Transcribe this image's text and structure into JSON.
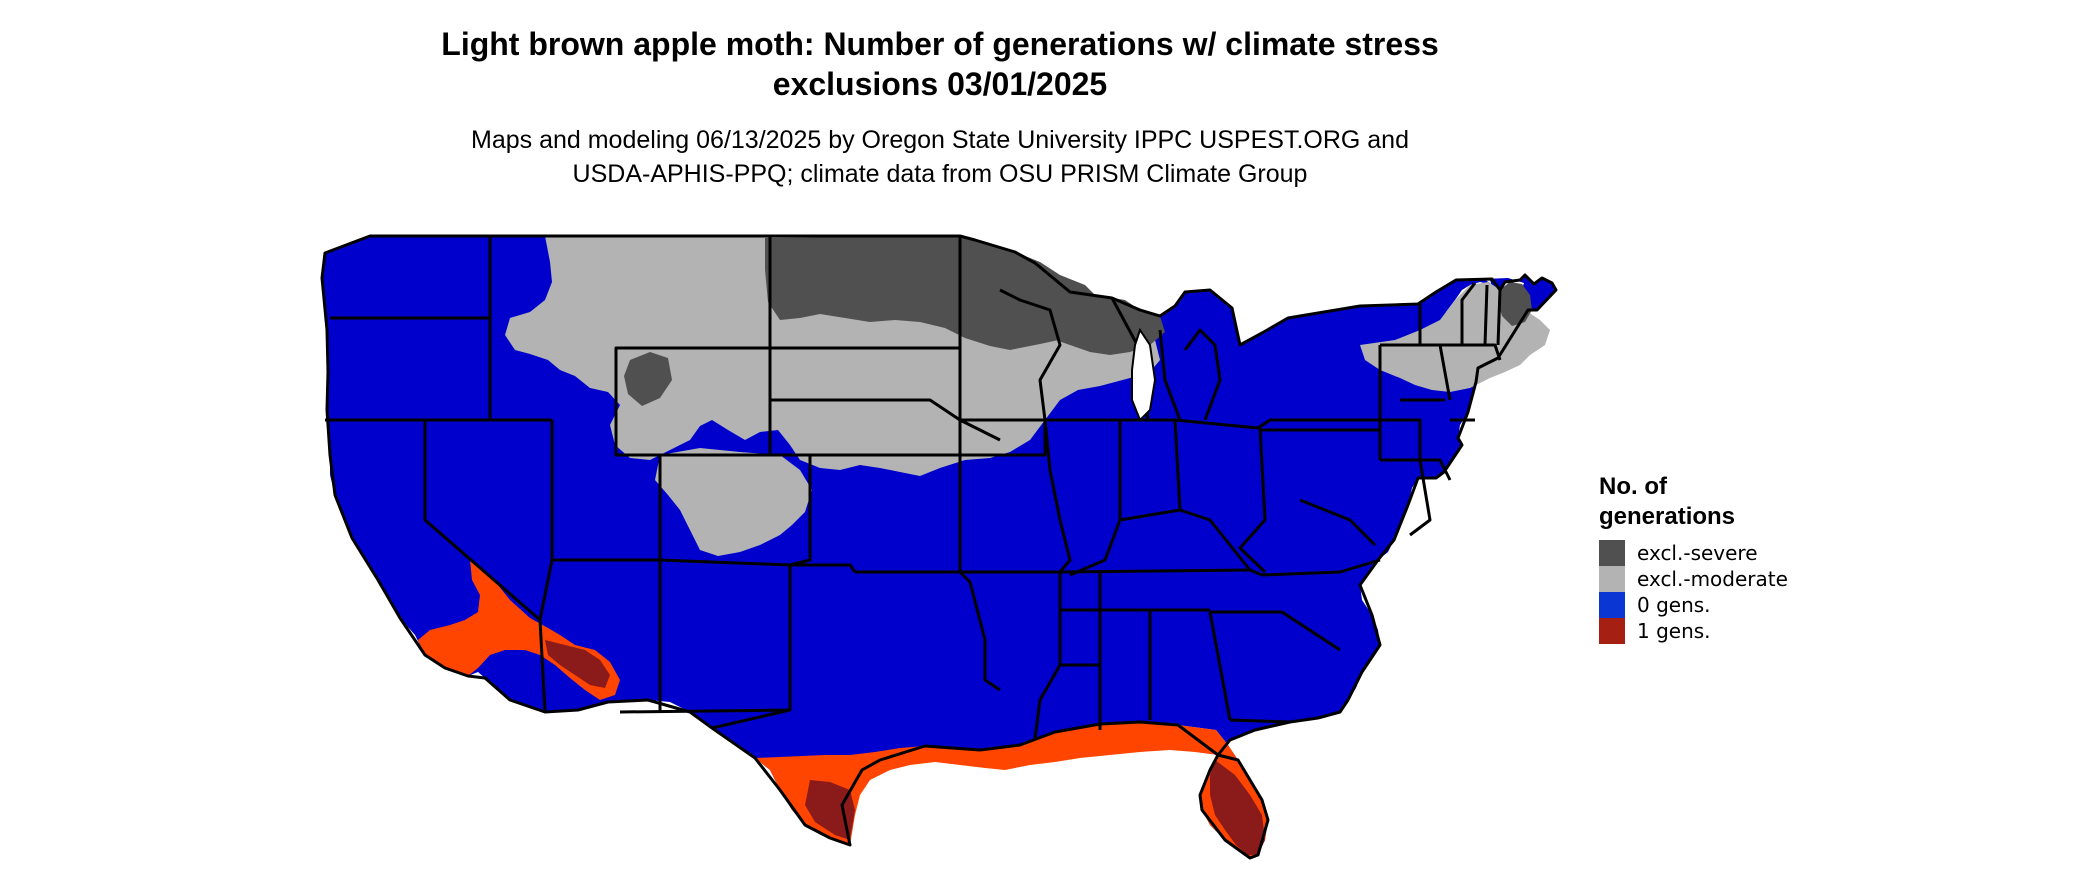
{
  "title_line1": "Light brown apple moth: Number of generations w/ climate stress",
  "title_line2": "exclusions 03/01/2025",
  "subtitle_line1": "Maps and modeling 06/13/2025 by Oregon State University IPPC USPEST.ORG and",
  "subtitle_line2": "USDA-APHIS-PPQ; climate data from OSU PRISM Climate Group",
  "legend": {
    "title_line1": "No. of",
    "title_line2": "generations",
    "items": [
      {
        "label": "excl.-severe",
        "color": "#505050"
      },
      {
        "label": "excl.-moderate",
        "color": "#b3b3b3"
      },
      {
        "label": "0 gens.",
        "color": "#0a36d4"
      },
      {
        "label": "1 gens.",
        "color": "#a51f12"
      }
    ]
  },
  "colors": {
    "zero_gens_fill": "#0000cc",
    "one_gen_dark": "#8b1a1a",
    "one_gen_light": "#ff4500",
    "excl_severe": "#505050",
    "excl_moderate": "#b3b3b3"
  }
}
